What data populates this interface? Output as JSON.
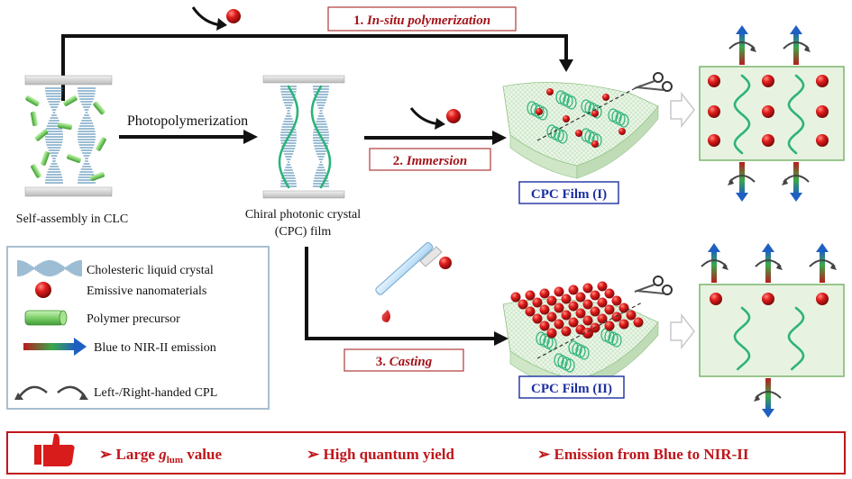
{
  "steps": {
    "step1_number": "1.",
    "step1_label": "In-situ polymerization",
    "step2_number": "2.",
    "step2_label": "Immersion",
    "step3_number": "3.",
    "step3_label": "Casting"
  },
  "process": {
    "photopolymerization": "Photopolymerization",
    "self_assembly": "Self-assembly in CLC",
    "cpc_line1": "Chiral photonic crystal",
    "cpc_line2": "(CPC) film"
  },
  "films": {
    "film1": "CPC Film (I)",
    "film2": "CPC Film (II)"
  },
  "legend": {
    "items": [
      {
        "label": "Cholesteric liquid crystal",
        "icon": "cholesteric-icon"
      },
      {
        "label": "Emissive nanomaterials",
        "icon": "nanoparticle-icon"
      },
      {
        "label": "Polymer precursor",
        "icon": "cylinder-icon"
      },
      {
        "label": "Blue to NIR-II emission",
        "icon": "gradient-arrow-icon"
      },
      {
        "label": "Left-/Right-handed CPL",
        "icon": "curved-arrows-icon"
      }
    ]
  },
  "footer": {
    "item1_pre": "➢ Large ",
    "item1_g": "g",
    "item1_sub": "lum",
    "item1_post": " value",
    "item2": "➢ High quantum yield",
    "item3": "➢ Emission from Blue to NIR-II"
  },
  "colors": {
    "accent_red": "#c0161b",
    "label_red": "#a3141a",
    "film_blue": "#1b2fa0",
    "helix_green": "#2eb37a",
    "panel_green": "#e7f3e0",
    "panel_border": "#7bb56c",
    "legend_border": "#a9bfcf"
  }
}
